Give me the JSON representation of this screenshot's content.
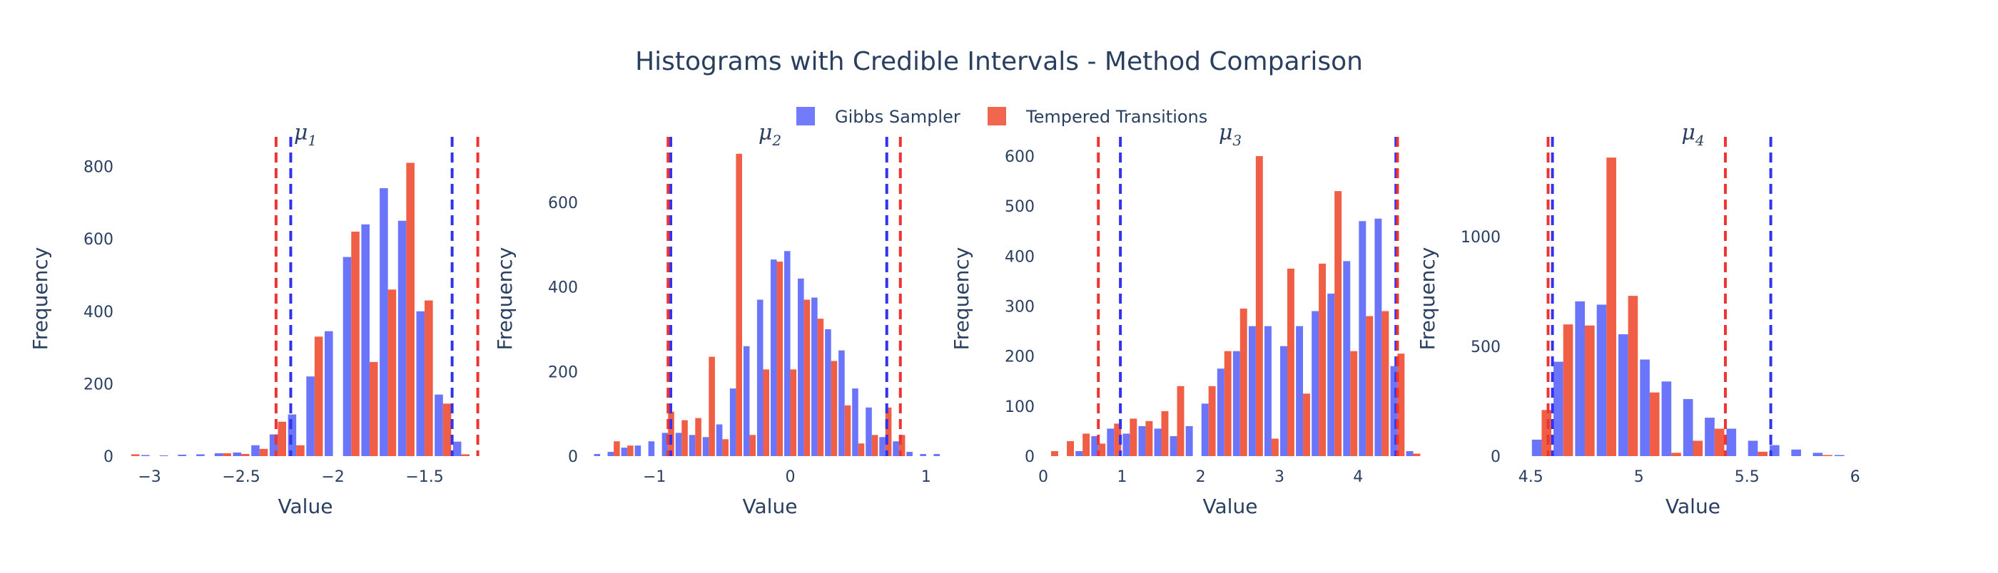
{
  "title": "Histograms with Credible Intervals - Method Comparison",
  "colors": {
    "gibbs": "#636efa",
    "tempered": "#ef553b",
    "gibbs_line": "#3333ee",
    "tempered_line": "#ee3333",
    "text": "#2a3f5f"
  },
  "legend": [
    {
      "key": "gibbs",
      "label": "Gibbs Sampler"
    },
    {
      "key": "tempered",
      "label": "Tempered Transitions"
    }
  ],
  "chart_data": [
    {
      "type": "bar",
      "subtitle": "μ1",
      "subtitle_base": "μ",
      "subtitle_sub": "1",
      "xlabel": "Value",
      "ylabel": "Frequency",
      "xlim": [
        -3.15,
        -1.15
      ],
      "ylim": [
        0,
        870
      ],
      "xticks": [
        -3,
        -2.5,
        -2,
        -1.5
      ],
      "xtick_labels": [
        "−3",
        "−2.5",
        "−2",
        "−1.5"
      ],
      "yticks": [
        0,
        200,
        400,
        600,
        800
      ],
      "ytick_labels": [
        "0",
        "200",
        "400",
        "600",
        "800"
      ],
      "bin_width": 0.1,
      "bins": [
        -3.1,
        -3.0,
        -2.9,
        -2.8,
        -2.7,
        -2.6,
        -2.5,
        -2.4,
        -2.3,
        -2.2,
        -2.1,
        -2.0,
        -1.9,
        -1.8,
        -1.7,
        -1.6,
        -1.5,
        -1.4,
        -1.3,
        -1.2
      ],
      "series": [
        {
          "name": "Gibbs Sampler",
          "key": "gibbs",
          "values": [
            0,
            3,
            2,
            4,
            5,
            8,
            10,
            30,
            60,
            115,
            220,
            345,
            550,
            640,
            740,
            650,
            400,
            170,
            40,
            0
          ]
        },
        {
          "name": "Tempered Transitions",
          "key": "tempered",
          "values": [
            5,
            0,
            0,
            0,
            0,
            8,
            6,
            20,
            95,
            30,
            330,
            0,
            620,
            260,
            460,
            810,
            430,
            145,
            5,
            0
          ]
        }
      ],
      "credible_intervals": [
        {
          "key": "gibbs",
          "lo": -2.23,
          "hi": -1.35
        },
        {
          "key": "tempered",
          "lo": -2.31,
          "hi": -1.21
        }
      ]
    },
    {
      "type": "bar",
      "subtitle": "μ2",
      "subtitle_base": "μ",
      "subtitle_sub": "2",
      "xlabel": "Value",
      "ylabel": "Frequency",
      "xlim": [
        -1.5,
        1.2
      ],
      "ylim": [
        0,
        745
      ],
      "xticks": [
        -1,
        0,
        1
      ],
      "xtick_labels": [
        "−1",
        "0",
        "1"
      ],
      "yticks": [
        0,
        200,
        400,
        600
      ],
      "ytick_labels": [
        "0",
        "200",
        "400",
        "600"
      ],
      "bin_width": 0.1,
      "bins": [
        -1.4,
        -1.3,
        -1.2,
        -1.1,
        -1.0,
        -0.9,
        -0.8,
        -0.7,
        -0.6,
        -0.5,
        -0.4,
        -0.3,
        -0.2,
        -0.1,
        0.0,
        0.1,
        0.2,
        0.3,
        0.4,
        0.5,
        0.6,
        0.7,
        0.8,
        0.9,
        1.0,
        1.1
      ],
      "series": [
        {
          "name": "Gibbs Sampler",
          "key": "gibbs",
          "values": [
            5,
            10,
            20,
            25,
            35,
            55,
            55,
            50,
            45,
            75,
            160,
            260,
            370,
            465,
            485,
            420,
            375,
            300,
            250,
            160,
            115,
            45,
            35,
            10,
            5,
            5
          ]
        },
        {
          "name": "Tempered Transitions",
          "key": "tempered",
          "values": [
            0,
            35,
            25,
            0,
            0,
            105,
            85,
            90,
            235,
            40,
            715,
            50,
            205,
            460,
            205,
            370,
            325,
            225,
            120,
            30,
            50,
            115,
            50,
            0,
            0,
            0
          ]
        }
      ],
      "credible_intervals": [
        {
          "key": "gibbs",
          "lo": -0.88,
          "hi": 0.71
        },
        {
          "key": "tempered",
          "lo": -0.9,
          "hi": 0.81
        }
      ]
    },
    {
      "type": "bar",
      "subtitle": "μ3",
      "subtitle_base": "μ",
      "subtitle_sub": "3",
      "xlabel": "Value",
      "ylabel": "Frequency",
      "xlim": [
        0,
        4.75
      ],
      "ylim": [
        0,
        630
      ],
      "xticks": [
        0,
        1,
        2,
        3,
        4
      ],
      "xtick_labels": [
        "0",
        "1",
        "2",
        "3",
        "4"
      ],
      "yticks": [
        0,
        100,
        200,
        300,
        400,
        500,
        600
      ],
      "ytick_labels": [
        "0",
        "100",
        "200",
        "300",
        "400",
        "500",
        "600"
      ],
      "bin_width": 0.2,
      "bins": [
        0.1,
        0.3,
        0.5,
        0.7,
        0.9,
        1.1,
        1.3,
        1.5,
        1.7,
        1.9,
        2.1,
        2.3,
        2.5,
        2.7,
        2.9,
        3.1,
        3.3,
        3.5,
        3.7,
        3.9,
        4.1,
        4.3,
        4.5,
        4.7
      ],
      "series": [
        {
          "name": "Gibbs Sampler",
          "key": "gibbs",
          "values": [
            0,
            0,
            10,
            40,
            55,
            45,
            60,
            55,
            40,
            60,
            105,
            175,
            210,
            260,
            260,
            220,
            260,
            290,
            325,
            390,
            470,
            475,
            180,
            10
          ]
        },
        {
          "name": "Tempered Transitions",
          "key": "tempered",
          "values": [
            10,
            30,
            45,
            25,
            65,
            75,
            70,
            90,
            140,
            0,
            140,
            210,
            295,
            600,
            35,
            375,
            125,
            385,
            530,
            210,
            280,
            290,
            205,
            5
          ]
        }
      ],
      "credible_intervals": [
        {
          "key": "gibbs",
          "lo": 0.98,
          "hi": 4.48
        },
        {
          "key": "tempered",
          "lo": 0.7,
          "hi": 4.5
        }
      ]
    },
    {
      "type": "bar",
      "subtitle": "μ4",
      "subtitle_base": "μ",
      "subtitle_sub": "4",
      "xlabel": "Value",
      "ylabel": "Frequency",
      "xlim": [
        4.4,
        6.1
      ],
      "ylim": [
        0,
        1435
      ],
      "xticks": [
        4.5,
        5,
        5.5,
        6
      ],
      "xtick_labels": [
        "4.5",
        "5",
        "5.5",
        "6"
      ],
      "yticks": [
        0,
        500,
        1000
      ],
      "ytick_labels": [
        "0",
        "500",
        "1000"
      ],
      "bin_width": 0.1,
      "bins": [
        4.55,
        4.65,
        4.75,
        4.85,
        4.95,
        5.05,
        5.15,
        5.25,
        5.35,
        5.45,
        5.55,
        5.65,
        5.75,
        5.85,
        5.95,
        6.05
      ],
      "series": [
        {
          "name": "Gibbs Sampler",
          "key": "gibbs",
          "values": [
            75,
            430,
            705,
            690,
            555,
            440,
            340,
            260,
            175,
            125,
            70,
            50,
            30,
            15,
            5,
            0
          ]
        },
        {
          "name": "Tempered Transitions",
          "key": "tempered",
          "values": [
            210,
            600,
            595,
            1360,
            730,
            290,
            15,
            70,
            125,
            0,
            20,
            0,
            0,
            5,
            0,
            0
          ]
        }
      ],
      "credible_intervals": [
        {
          "key": "gibbs",
          "lo": 4.6,
          "hi": 5.61
        },
        {
          "key": "tempered",
          "lo": 4.58,
          "hi": 5.4
        }
      ]
    }
  ]
}
